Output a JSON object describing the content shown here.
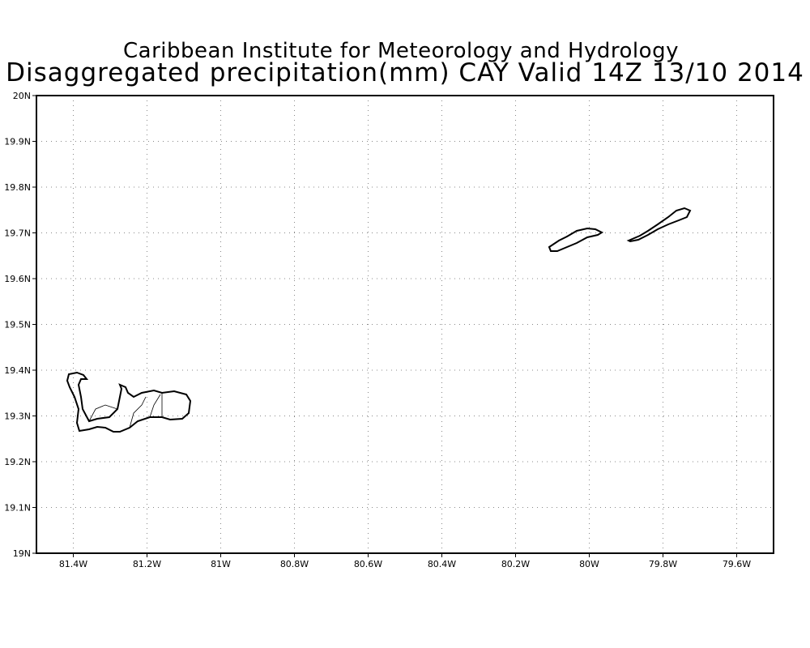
{
  "title_line1": "Caribbean Institute for Meteorology and Hydrology",
  "title_line2": "Disaggregated precipitation(mm) CAY Valid 14Z 13/10 2014",
  "map": {
    "lon_range": [
      -81.5,
      -79.5
    ],
    "lat_range": [
      19.0,
      20.0
    ],
    "x_ticks": [
      {
        "lon": -81.4,
        "label": "81.4W"
      },
      {
        "lon": -81.2,
        "label": "81.2W"
      },
      {
        "lon": -81.0,
        "label": "81W"
      },
      {
        "lon": -80.8,
        "label": "80.8W"
      },
      {
        "lon": -80.6,
        "label": "80.6W"
      },
      {
        "lon": -80.4,
        "label": "80.4W"
      },
      {
        "lon": -80.2,
        "label": "80.2W"
      },
      {
        "lon": -80.0,
        "label": "80W"
      },
      {
        "lon": -79.8,
        "label": "79.8W"
      },
      {
        "lon": -79.6,
        "label": "79.6W"
      }
    ],
    "y_ticks": [
      {
        "lat": 19.0,
        "label": "19N"
      },
      {
        "lat": 19.1,
        "label": "19.1N"
      },
      {
        "lat": 19.2,
        "label": "19.2N"
      },
      {
        "lat": 19.3,
        "label": "19.3N"
      },
      {
        "lat": 19.4,
        "label": "19.4N"
      },
      {
        "lat": 19.5,
        "label": "19.5N"
      },
      {
        "lat": 19.6,
        "label": "19.6N"
      },
      {
        "lat": 19.7,
        "label": "19.7N"
      },
      {
        "lat": 19.8,
        "label": "19.8N"
      },
      {
        "lat": 19.9,
        "label": "19.9N"
      },
      {
        "lat": 20.0,
        "label": "20N"
      }
    ],
    "islands": [
      "Grand Cayman",
      "Little Cayman",
      "Cayman Brac"
    ]
  }
}
